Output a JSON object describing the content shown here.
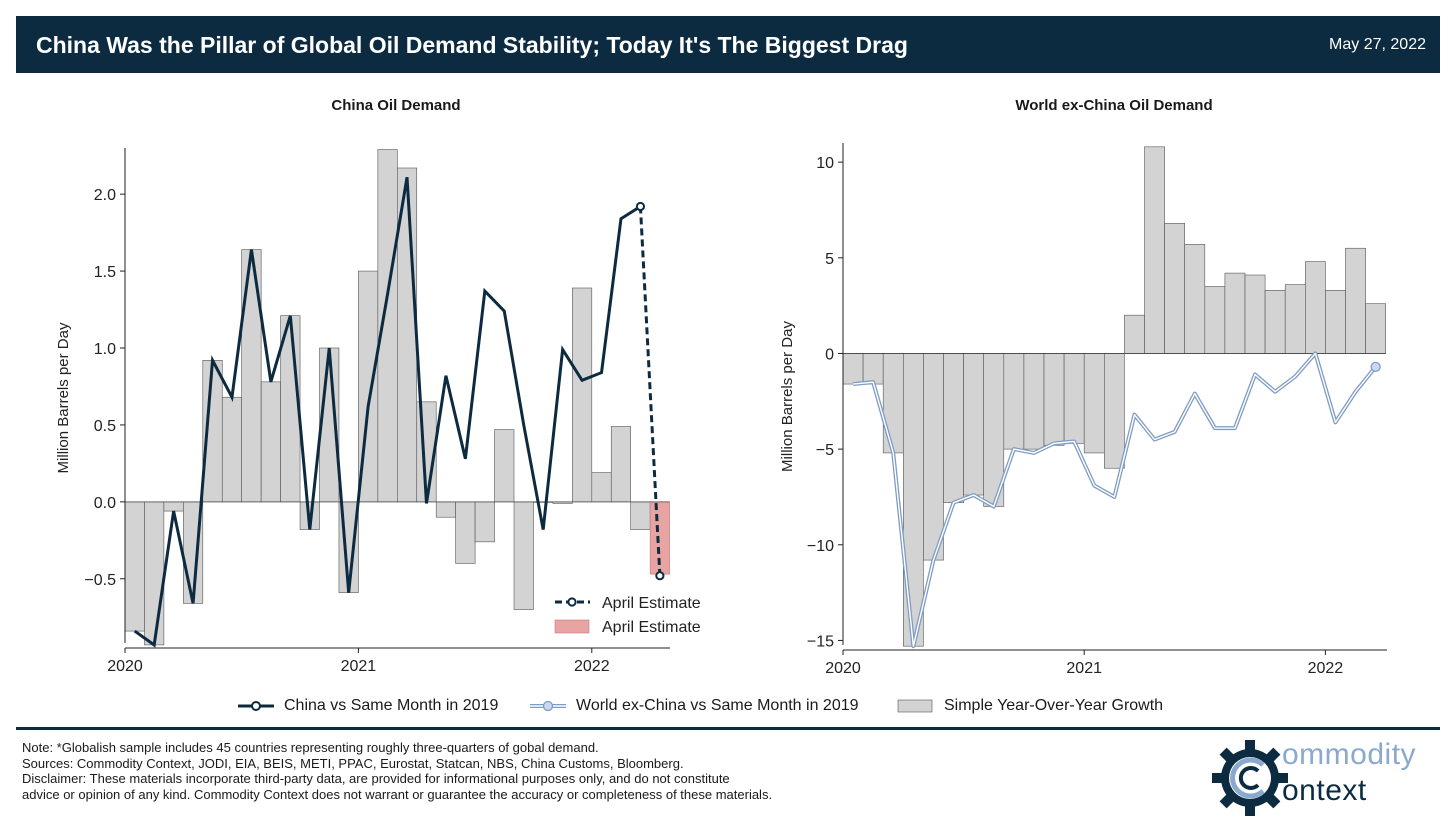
{
  "header": {
    "title": "China Was the Pillar of Global Oil Demand Stability; Today It's The Biggest Drag",
    "date": "May 27, 2022"
  },
  "legend": {
    "china_line": "China vs Same Month in 2019",
    "world_line": "World ex-China vs Same Month in 2019",
    "bars": "Simple Year-Over-Year Growth"
  },
  "notes": {
    "note": "Note: *Globalish sample includes 45 countries representing roughly three-quarters of gobal demand.",
    "sources": "Sources: Commodity Context, JODI, EIA, BEIS, METI, PPAC, Eurostat, Statcan, NBS, China Customs, Bloomberg.",
    "disclaimer_1": "Disclaimer: These materials incorporate third-party data, are provided for informational purposes only, and do not constitute",
    "disclaimer_2": "advice or opinion of any kind. Commodity Context does not warrant or guarantee the accuracy or completeness of these materials."
  },
  "logo": {
    "line1": "ommodity",
    "line2": "ontext"
  },
  "colors": {
    "header_bg": "#0d2b40",
    "china_line": "#0d2b40",
    "world_line": "#7f9cc4",
    "bars": "#d3d3d3",
    "estimate_bar": "#e8a3a3"
  },
  "chart_data": [
    {
      "type": "bar",
      "title": "China Oil Demand",
      "ylabel": "Million Barrels per Day",
      "xlabel": "",
      "x_ticks": [
        "2020",
        "2021",
        "2022"
      ],
      "y_ticks": [
        "−0.5",
        "0.0",
        "0.5",
        "1.0",
        "1.5",
        "2.0"
      ],
      "ylim": [
        -0.95,
        2.3
      ],
      "months": [
        "2020-01",
        "2020-02",
        "2020-03",
        "2020-04",
        "2020-05",
        "2020-06",
        "2020-07",
        "2020-08",
        "2020-09",
        "2020-10",
        "2020-11",
        "2020-12",
        "2021-01",
        "2021-02",
        "2021-03",
        "2021-04",
        "2021-05",
        "2021-06",
        "2021-07",
        "2021-08",
        "2021-09",
        "2021-10",
        "2021-11",
        "2021-12",
        "2022-01",
        "2022-02",
        "2022-03",
        "2022-04"
      ],
      "series": [
        {
          "name": "Simple Year-Over-Year Growth",
          "kind": "bar",
          "values": [
            -0.84,
            -0.93,
            -0.06,
            -0.66,
            0.92,
            0.68,
            1.64,
            0.78,
            1.21,
            -0.18,
            1.0,
            -0.59,
            1.5,
            2.29,
            2.17,
            0.65,
            -0.1,
            -0.4,
            -0.26,
            0.47,
            -0.7,
            0.0,
            -0.01,
            1.39,
            0.19,
            0.49,
            -0.18,
            -0.47
          ]
        },
        {
          "name": "China vs Same Month in 2019",
          "kind": "line",
          "values": [
            -0.84,
            -0.93,
            -0.06,
            -0.66,
            0.92,
            0.68,
            1.64,
            0.78,
            1.21,
            -0.18,
            1.0,
            -0.59,
            0.62,
            1.35,
            2.11,
            -0.01,
            0.82,
            0.28,
            1.37,
            1.24,
            0.5,
            -0.18,
            0.99,
            0.79,
            0.84,
            1.84,
            1.92,
            -0.48
          ]
        }
      ],
      "inset_legend": [
        {
          "label": "April Estimate",
          "kind": "dashed-line"
        },
        {
          "label": "April Estimate",
          "kind": "bar"
        }
      ]
    },
    {
      "type": "bar",
      "title": "World ex-China Oil Demand",
      "ylabel": "Million Barrels per Day",
      "xlabel": "",
      "x_ticks": [
        "2020",
        "2021",
        "2022"
      ],
      "y_ticks": [
        "−15",
        "−10",
        "−5",
        "0",
        "5",
        "10"
      ],
      "ylim": [
        -15.5,
        11
      ],
      "months": [
        "2020-01",
        "2020-02",
        "2020-03",
        "2020-04",
        "2020-05",
        "2020-06",
        "2020-07",
        "2020-08",
        "2020-09",
        "2020-10",
        "2020-11",
        "2020-12",
        "2021-01",
        "2021-02",
        "2021-03",
        "2021-04",
        "2021-05",
        "2021-06",
        "2021-07",
        "2021-08",
        "2021-09",
        "2021-10",
        "2021-11",
        "2021-12",
        "2022-01",
        "2022-02",
        "2022-03",
        "2022-04"
      ],
      "series": [
        {
          "name": "Simple Year-Over-Year Growth",
          "kind": "bar",
          "values": [
            -1.6,
            -1.6,
            -5.2,
            -15.3,
            -10.8,
            -7.8,
            -7.4,
            -8.0,
            -5.0,
            -5.0,
            -4.8,
            -4.7,
            -5.2,
            -6.0,
            2.0,
            10.8,
            6.8,
            5.7,
            3.5,
            4.2,
            4.1,
            3.3,
            3.6,
            4.8,
            3.3,
            5.5,
            2.6
          ]
        },
        {
          "name": "World ex-China vs Same Month in 2019",
          "kind": "line",
          "values": [
            -1.6,
            -1.5,
            -5.2,
            -15.3,
            -10.8,
            -7.8,
            -7.4,
            -8.0,
            -5.0,
            -5.2,
            -4.7,
            -4.6,
            -6.9,
            -7.5,
            -3.2,
            -4.5,
            -4.1,
            -2.1,
            -3.9,
            -3.9,
            -1.1,
            -2.0,
            -1.2,
            0.0,
            -3.6,
            -2.0,
            -0.7
          ]
        }
      ]
    }
  ]
}
